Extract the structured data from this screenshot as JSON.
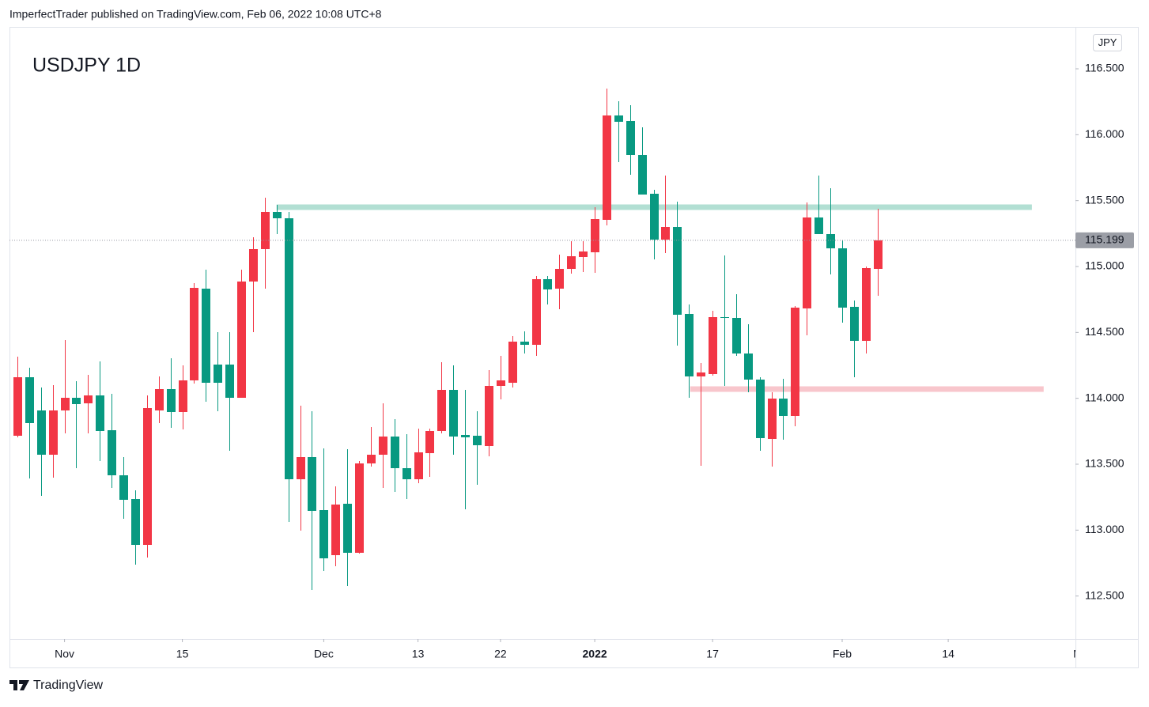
{
  "header": {
    "publisher": "ImperfectTrader published on TradingView.com, Feb 06, 2022 10:08 UTC+8"
  },
  "chart_data": {
    "type": "candlestick",
    "title": "USDJPY 1D",
    "currency": "JPY",
    "up_color": "#f23645",
    "down_color": "#089981",
    "open": [
      113.716,
      114.16,
      113.908,
      113.572,
      113.908,
      114.004,
      113.962,
      114.022,
      113.758,
      113.416,
      113.236,
      112.888,
      113.908,
      114.07,
      113.896,
      114.136,
      114.832,
      114.256,
      114.256,
      114.004,
      114.886,
      115.132,
      115.414,
      115.366,
      113.386,
      113.554,
      113.152,
      112.81,
      113.2,
      112.828,
      113.506,
      113.572,
      113.71,
      113.47,
      113.386,
      113.584,
      113.752,
      114.064,
      113.722,
      113.716,
      113.638,
      114.094,
      114.118,
      114.43,
      114.406,
      114.904,
      114.832,
      114.982,
      115.072,
      115.108,
      115.354,
      116.146,
      116.104,
      115.846,
      115.552,
      115.204,
      115.3,
      114.64,
      114.166,
      114.184,
      114.616,
      114.61,
      114.34,
      114.142,
      113.692,
      113.998,
      113.866,
      114.682,
      115.372,
      115.246,
      115.138,
      114.694,
      114.436,
      114.982
    ],
    "high": [
      114.316,
      114.232,
      114.082,
      114.1,
      114.442,
      114.13,
      114.178,
      114.28,
      114.034,
      113.554,
      113.302,
      114.022,
      114.166,
      114.304,
      114.25,
      114.874,
      114.976,
      114.502,
      114.502,
      114.976,
      115.222,
      115.522,
      115.468,
      115.414,
      113.944,
      113.902,
      113.62,
      113.332,
      113.614,
      113.524,
      113.782,
      113.962,
      113.842,
      113.728,
      113.77,
      113.77,
      114.274,
      114.25,
      114.064,
      113.902,
      114.214,
      114.322,
      114.472,
      114.508,
      114.928,
      114.928,
      115.09,
      115.192,
      115.192,
      115.45,
      116.35,
      116.254,
      116.224,
      116.056,
      115.582,
      115.69,
      115.492,
      114.712,
      114.268,
      114.664,
      115.084,
      114.79,
      114.562,
      114.16,
      114.046,
      114.148,
      114.7,
      115.486,
      115.69,
      115.594,
      115.198,
      114.742,
      115.0,
      115.438
    ],
    "low": [
      113.704,
      113.392,
      113.26,
      113.398,
      113.734,
      113.47,
      113.734,
      113.524,
      113.32,
      113.086,
      112.738,
      112.792,
      113.812,
      113.776,
      113.764,
      114.112,
      113.974,
      113.902,
      113.602,
      114.004,
      114.502,
      114.832,
      115.246,
      113.062,
      112.996,
      112.546,
      112.69,
      112.726,
      112.576,
      112.822,
      113.482,
      113.32,
      113.29,
      113.236,
      113.356,
      113.404,
      113.734,
      113.572,
      113.158,
      113.344,
      113.56,
      113.992,
      114.082,
      114.34,
      114.322,
      114.712,
      114.676,
      114.946,
      114.958,
      114.952,
      115.312,
      115.792,
      115.696,
      115.546,
      115.054,
      115.102,
      114.4,
      114.004,
      113.488,
      114.172,
      114.094,
      114.322,
      114.046,
      113.602,
      113.482,
      113.686,
      113.788,
      114.478,
      115.246,
      114.94,
      114.574,
      114.16,
      114.34,
      114.778
    ],
    "close": [
      114.16,
      113.812,
      113.572,
      113.908,
      114.004,
      113.956,
      114.022,
      113.752,
      113.416,
      113.23,
      112.888,
      113.926,
      114.07,
      113.896,
      114.136,
      114.838,
      114.118,
      114.118,
      114.004,
      114.886,
      115.132,
      115.414,
      115.366,
      113.386,
      113.554,
      113.146,
      112.786,
      113.194,
      112.828,
      113.506,
      113.572,
      113.71,
      113.47,
      113.386,
      113.59,
      113.752,
      114.064,
      113.71,
      113.704,
      113.644,
      114.094,
      114.136,
      114.43,
      114.406,
      114.904,
      114.826,
      114.982,
      115.078,
      115.114,
      115.36,
      116.146,
      116.098,
      115.846,
      115.546,
      115.204,
      115.3,
      114.634,
      114.166,
      114.196,
      114.616,
      114.61,
      114.34,
      114.142,
      113.698,
      113.998,
      113.866,
      114.688,
      115.372,
      115.246,
      115.138,
      114.688,
      114.436,
      114.988,
      115.199
    ],
    "xlim": [
      -0.671,
      89.799
    ],
    "xticks": [
      {
        "value": 4,
        "label": "Nov"
      },
      {
        "value": 14,
        "label": "15"
      },
      {
        "value": 26,
        "label": "Dec"
      },
      {
        "value": 34,
        "label": "13"
      },
      {
        "value": 41,
        "label": "22"
      },
      {
        "value": 49,
        "label": "2022"
      },
      {
        "value": 59,
        "label": "17"
      },
      {
        "value": 70,
        "label": "Feb"
      },
      {
        "value": 79,
        "label": "14"
      },
      {
        "value": 90,
        "label": "M"
      }
    ],
    "ylim": [
      112.174,
      116.818
    ],
    "yticks": [
      {
        "value": 112.5,
        "label": "112.500"
      },
      {
        "value": 113,
        "label": "113.000"
      },
      {
        "value": 113.5,
        "label": "113.500"
      },
      {
        "value": 114,
        "label": "114.000"
      },
      {
        "value": 114.5,
        "label": "114.500"
      },
      {
        "value": 115,
        "label": "115.000"
      },
      {
        "value": 115.5,
        "label": "115.500"
      },
      {
        "value": 116,
        "label": "116.000"
      },
      {
        "value": 116.5,
        "label": "116.500"
      }
    ],
    "zones": [
      {
        "value": 115.45,
        "start": 22,
        "end": 86.1,
        "color": "#b2dfd3"
      },
      {
        "value": 114.07,
        "start": 57.1,
        "end": 87.1,
        "color": "#f8c6cc"
      }
    ]
  },
  "footer": {
    "brand": "TradingView"
  }
}
